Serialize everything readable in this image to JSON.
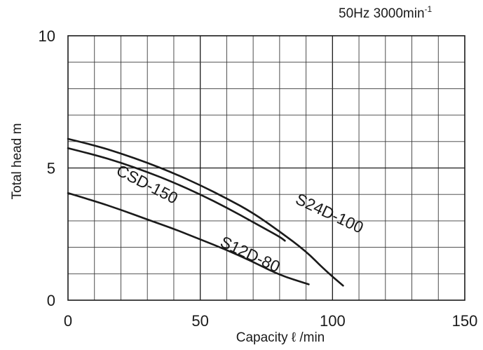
{
  "chart_data": {
    "type": "line",
    "condition": {
      "text": "50Hz 3000min",
      "sup": "-1"
    },
    "xlabel": "Capacity  ℓ /min",
    "ylabel": "Total head  m",
    "xlim": [
      0,
      150
    ],
    "ylim": [
      0,
      10
    ],
    "x_ticks": [
      0,
      50,
      100,
      150
    ],
    "y_ticks": [
      0,
      5,
      10
    ],
    "x_minor_step": 10,
    "y_minor_step": 1,
    "grid": true,
    "series": [
      {
        "name": "S24D-100",
        "label_pos": [
          98,
          3.1
        ],
        "label_angle": 25,
        "points": [
          [
            0,
            6.1
          ],
          [
            10,
            5.86
          ],
          [
            20,
            5.55
          ],
          [
            30,
            5.2
          ],
          [
            40,
            4.8
          ],
          [
            50,
            4.35
          ],
          [
            60,
            3.85
          ],
          [
            70,
            3.3
          ],
          [
            80,
            2.6
          ],
          [
            90,
            1.85
          ],
          [
            97,
            1.15
          ],
          [
            104,
            0.55
          ]
        ]
      },
      {
        "name": "CSD-150",
        "label_pos": [
          29,
          4.2
        ],
        "label_angle": 27,
        "points": [
          [
            0,
            5.75
          ],
          [
            10,
            5.5
          ],
          [
            20,
            5.2
          ],
          [
            30,
            4.85
          ],
          [
            40,
            4.45
          ],
          [
            50,
            4.0
          ],
          [
            60,
            3.5
          ],
          [
            70,
            2.95
          ],
          [
            80,
            2.4
          ],
          [
            82,
            2.25
          ]
        ]
      },
      {
        "name": "S12D-80",
        "label_pos": [
          68,
          1.55
        ],
        "label_angle": 25,
        "points": [
          [
            0,
            4.05
          ],
          [
            10,
            3.75
          ],
          [
            20,
            3.42
          ],
          [
            30,
            3.05
          ],
          [
            40,
            2.7
          ],
          [
            50,
            2.3
          ],
          [
            60,
            1.9
          ],
          [
            70,
            1.45
          ],
          [
            80,
            0.95
          ],
          [
            91,
            0.6
          ]
        ]
      }
    ]
  }
}
